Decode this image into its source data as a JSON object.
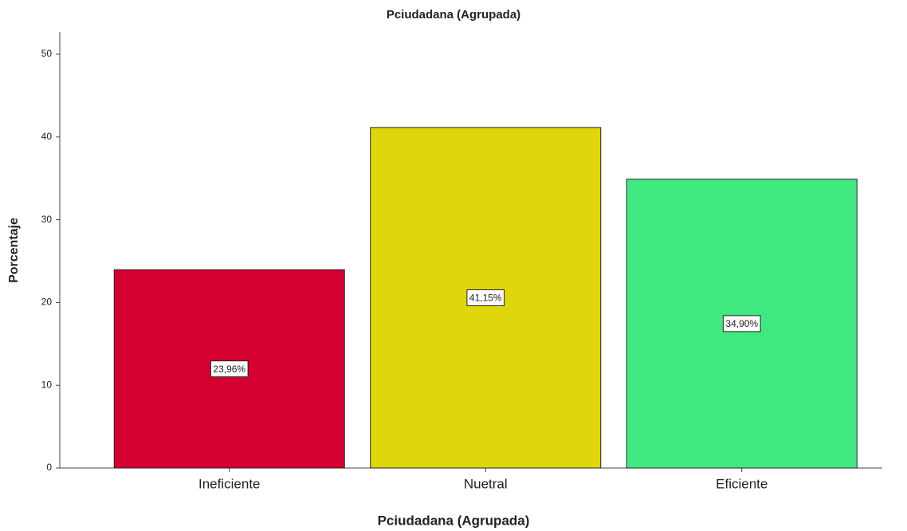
{
  "chart_data": {
    "type": "bar",
    "title": "Pciudadana (Agrupada)",
    "x_label": "Pciudadana (Agrupada)",
    "y_label": "Porcentaje",
    "categories": [
      "Ineficiente",
      "Nuetral",
      "Eficiente"
    ],
    "values": [
      23.96,
      41.15,
      34.9
    ],
    "value_labels": [
      "23,96%",
      "41,15%",
      "34,90%"
    ],
    "colors": [
      "#d50032",
      "#e0d60c",
      "#40e87f"
    ],
    "ylim": [
      0,
      52.7
    ],
    "yticks": [
      0,
      10,
      20,
      30,
      40,
      50
    ],
    "grid": false
  }
}
